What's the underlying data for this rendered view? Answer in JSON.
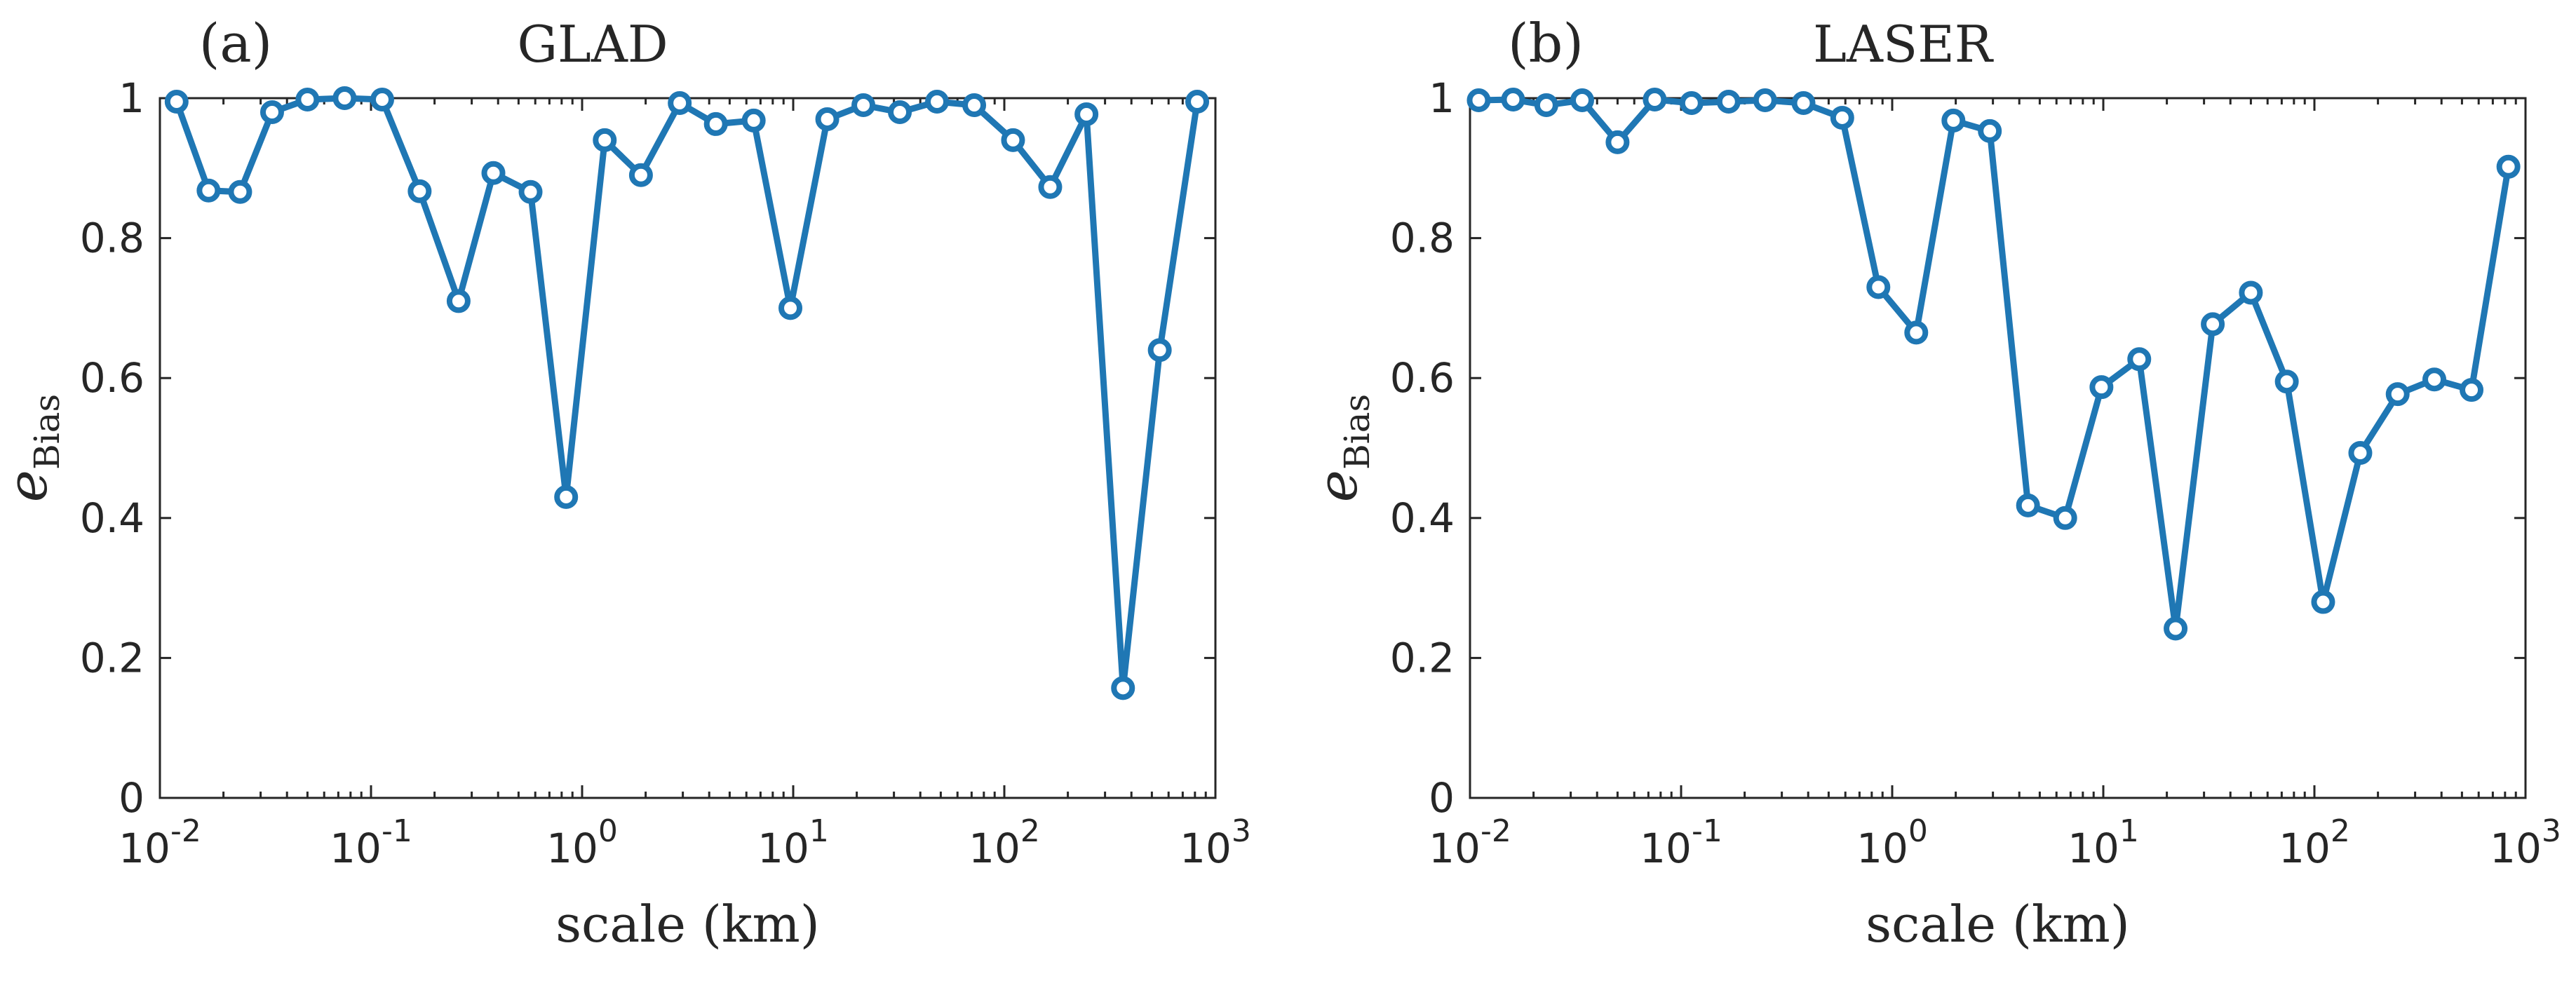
{
  "colors": {
    "series": "#1f77b4",
    "axis": "#262626",
    "background": "#ffffff"
  },
  "chart_data": [
    {
      "type": "line",
      "panel_label": "(a)",
      "title": "GLAD",
      "xlabel": "scale (km)",
      "ylabel": "e",
      "ylabel_sub": "Bias",
      "x_scale": "log",
      "xlim": [
        0.01,
        1000
      ],
      "ylim": [
        0,
        1
      ],
      "xticks": [
        0.01,
        0.1,
        1,
        10,
        100,
        1000
      ],
      "xtick_labels": [
        {
          "base": "10",
          "exp": "-2"
        },
        {
          "base": "10",
          "exp": "-1"
        },
        {
          "base": "10",
          "exp": "0"
        },
        {
          "base": "10",
          "exp": "1"
        },
        {
          "base": "10",
          "exp": "2"
        },
        {
          "base": "10",
          "exp": "3"
        }
      ],
      "yticks": [
        0,
        0.2,
        0.4,
        0.6,
        0.8,
        1
      ],
      "ytick_labels": [
        "0",
        "0.2",
        "0.4",
        "0.6",
        "0.8",
        "1"
      ],
      "grid": false,
      "series": [
        {
          "x": [
            0.012,
            0.017,
            0.024,
            0.034,
            0.05,
            0.075,
            0.113,
            0.17,
            0.26,
            0.38,
            0.57,
            0.84,
            1.28,
            1.9,
            2.9,
            4.3,
            6.5,
            9.7,
            14.5,
            21.5,
            32,
            48,
            72,
            110,
            165,
            245,
            365,
            545,
            820
          ],
          "y": [
            0.995,
            0.868,
            0.866,
            0.98,
            0.998,
            1.0,
            0.998,
            0.867,
            0.71,
            0.893,
            0.866,
            0.43,
            0.94,
            0.89,
            0.993,
            0.963,
            0.968,
            0.7,
            0.97,
            0.99,
            0.98,
            0.995,
            0.99,
            0.94,
            0.873,
            0.977,
            0.157,
            0.64,
            0.995
          ]
        }
      ]
    },
    {
      "type": "line",
      "panel_label": "(b)",
      "title": "LASER",
      "xlabel": "scale (km)",
      "ylabel": "e",
      "ylabel_sub": "Bias",
      "x_scale": "log",
      "xlim": [
        0.01,
        1000
      ],
      "ylim": [
        0,
        1
      ],
      "xticks": [
        0.01,
        0.1,
        1,
        10,
        100,
        1000
      ],
      "xtick_labels": [
        {
          "base": "10",
          "exp": "-2"
        },
        {
          "base": "10",
          "exp": "-1"
        },
        {
          "base": "10",
          "exp": "0"
        },
        {
          "base": "10",
          "exp": "1"
        },
        {
          "base": "10",
          "exp": "2"
        },
        {
          "base": "10",
          "exp": "3"
        }
      ],
      "yticks": [
        0,
        0.2,
        0.4,
        0.6,
        0.8,
        1
      ],
      "ytick_labels": [
        "0",
        "0.2",
        "0.4",
        "0.6",
        "0.8",
        "1"
      ],
      "grid": false,
      "series": [
        {
          "x": [
            0.011,
            0.016,
            0.023,
            0.034,
            0.05,
            0.075,
            0.112,
            0.168,
            0.25,
            0.38,
            0.58,
            0.86,
            1.3,
            1.95,
            2.9,
            4.4,
            6.6,
            9.8,
            14.8,
            22,
            33,
            50,
            74,
            110,
            165,
            248,
            370,
            555,
            830
          ],
          "y": [
            0.997,
            0.998,
            0.99,
            0.997,
            0.937,
            0.998,
            0.993,
            0.995,
            0.997,
            0.993,
            0.972,
            0.73,
            0.665,
            0.968,
            0.953,
            0.418,
            0.4,
            0.587,
            0.627,
            0.242,
            0.677,
            0.722,
            0.595,
            0.28,
            0.493,
            0.577,
            0.598,
            0.583,
            0.902
          ]
        }
      ]
    }
  ]
}
